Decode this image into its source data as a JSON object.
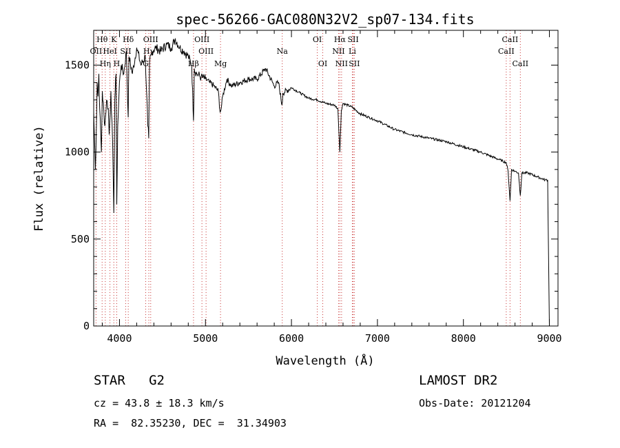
{
  "chart_data": {
    "type": "line",
    "title": "spec-56266-GAC080N32V2_sp07-134.fits",
    "xlabel": "Wavelength (Å)",
    "ylabel": "Flux (relative)",
    "xlim": [
      3700,
      9100
    ],
    "ylim": [
      0,
      1700
    ],
    "x_ticks": [
      4000,
      5000,
      6000,
      7000,
      8000,
      9000
    ],
    "y_ticks": [
      0,
      500,
      1000,
      1500
    ],
    "grid": false,
    "series": [
      {
        "x": [
          3700,
          3720,
          3730,
          3740,
          3750,
          3760,
          3770,
          3790,
          3800,
          3830,
          3850,
          3870,
          3880,
          3890,
          3900,
          3920,
          3934,
          3945,
          3960,
          3968,
          3980,
          4000,
          4020,
          4050,
          4080,
          4101,
          4110,
          4150,
          4200,
          4250,
          4300,
          4330,
          4340,
          4350,
          4380,
          4420,
          4480,
          4550,
          4600,
          4650,
          4700,
          4750,
          4800,
          4840,
          4861,
          4870,
          4900,
          4950,
          5000,
          5050,
          5100,
          5150,
          5170,
          5183,
          5200,
          5250,
          5300,
          5400,
          5500,
          5600,
          5700,
          5800,
          5850,
          5890,
          5895,
          5900,
          6000,
          6100,
          6200,
          6300,
          6400,
          6500,
          6540,
          6563,
          6580,
          6600,
          6700,
          6800,
          6900,
          7000,
          7200,
          7400,
          7600,
          7800,
          8000,
          8200,
          8400,
          8498,
          8520,
          8542,
          8560,
          8600,
          8640,
          8662,
          8680,
          8750,
          8850,
          8950,
          8980,
          8990,
          9000
        ],
        "y": [
          1230,
          900,
          1100,
          1400,
          1320,
          1450,
          1250,
          1000,
          1350,
          1150,
          1300,
          1250,
          1100,
          1200,
          1350,
          1050,
          650,
          1300,
          1450,
          700,
          1150,
          1400,
          1500,
          1450,
          1580,
          1200,
          1550,
          1450,
          1600,
          1500,
          1550,
          1150,
          1080,
          1520,
          1580,
          1600,
          1580,
          1620,
          1600,
          1650,
          1600,
          1580,
          1550,
          1500,
          1180,
          1480,
          1450,
          1430,
          1420,
          1400,
          1380,
          1350,
          1230,
          1250,
          1320,
          1420,
          1380,
          1400,
          1420,
          1420,
          1480,
          1380,
          1400,
          1270,
          1290,
          1340,
          1370,
          1340,
          1310,
          1300,
          1280,
          1270,
          1250,
          1000,
          1240,
          1280,
          1260,
          1220,
          1200,
          1180,
          1130,
          1100,
          1080,
          1060,
          1030,
          1000,
          960,
          940,
          890,
          720,
          900,
          890,
          880,
          750,
          880,
          880,
          860,
          840,
          840,
          400,
          0
        ]
      }
    ],
    "lines": [
      {
        "label": "Hθ",
        "x": 3798
      },
      {
        "label": "K",
        "x": 3934
      },
      {
        "label": "Hδ",
        "x": 4102
      },
      {
        "label": "OIII",
        "x": 4363
      },
      {
        "label": "OIII",
        "x": 4959
      },
      {
        "label": "OI",
        "x": 6300
      },
      {
        "label": "Hα",
        "x": 6563
      },
      {
        "label": "SII",
        "x": 6717
      },
      {
        "label": "CaII",
        "x": 8542
      },
      {
        "label": "OII",
        "x": 3727
      },
      {
        "label": "HeI",
        "x": 3889
      },
      {
        "label": "SII",
        "x": 4072
      },
      {
        "label": "Hγ",
        "x": 4341
      },
      {
        "label": "OIII",
        "x": 5007
      },
      {
        "label": "Na",
        "x": 5893
      },
      {
        "label": "NII",
        "x": 6548
      },
      {
        "label": "Li",
        "x": 6708
      },
      {
        "label": "CaII",
        "x": 8498
      },
      {
        "label": "Hη",
        "x": 3835
      },
      {
        "label": "H",
        "x": 3968
      },
      {
        "label": "G",
        "x": 4305
      },
      {
        "label": "Hβ",
        "x": 4861
      },
      {
        "label": "Mg",
        "x": 5175
      },
      {
        "label": "OI",
        "x": 6364
      },
      {
        "label": "NII",
        "x": 6583
      },
      {
        "label": "SII",
        "x": 6731
      },
      {
        "label": "CaII",
        "x": 8662
      }
    ]
  },
  "info": {
    "class_line": "STAR   G2",
    "release": "LAMOST DR2",
    "cz": "cz = 43.8 ± 18.3 km/s",
    "obs_date": "Obs-Date: 20121204",
    "coords": "RA =  82.35230, DEC =  31.34903"
  }
}
